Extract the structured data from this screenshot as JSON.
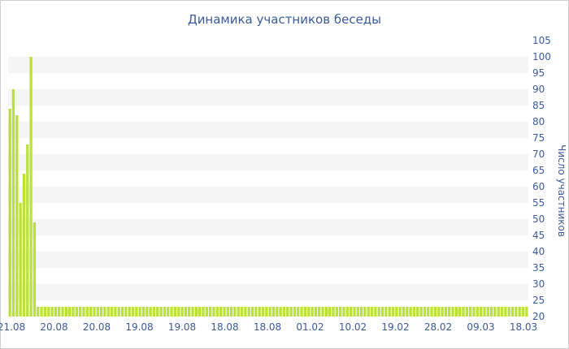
{
  "chart_data": {
    "type": "bar",
    "title": "Динамика участников беседы",
    "ylabel": "Число участников",
    "ylim": [
      20,
      105
    ],
    "y_ticks": [
      20,
      25,
      30,
      35,
      40,
      45,
      50,
      55,
      60,
      65,
      70,
      75,
      80,
      85,
      90,
      95,
      100,
      105
    ],
    "x_tick_labels": [
      "21.08",
      "20.08",
      "20.08",
      "19.08",
      "19.08",
      "18.08",
      "18.08",
      "01.02",
      "10.02",
      "19.02",
      "28.02",
      "09.03",
      "18.03"
    ],
    "values": [
      84,
      90,
      82,
      55,
      64,
      73,
      100,
      49,
      23,
      23,
      23,
      23,
      23,
      23,
      23,
      23,
      23,
      23,
      23,
      23,
      23,
      23,
      23,
      23,
      23,
      23,
      23,
      23,
      23,
      23,
      23,
      23,
      23,
      23,
      23,
      23,
      23,
      23,
      23,
      23,
      23,
      23,
      23,
      23,
      23,
      23,
      23,
      23,
      23,
      23,
      23,
      23,
      23,
      23,
      23,
      23,
      23,
      23,
      23,
      23,
      23,
      23,
      23,
      23,
      23,
      23,
      23,
      23,
      23,
      23,
      23,
      23,
      23,
      23,
      23,
      23,
      23,
      23,
      23,
      23,
      23,
      23,
      23,
      23,
      23,
      23,
      23,
      23,
      23,
      23,
      23,
      23,
      23,
      23,
      23,
      23,
      23,
      23,
      23,
      23,
      23,
      23,
      23,
      23,
      23,
      23,
      23,
      23,
      23,
      23,
      23,
      23,
      23,
      23,
      23,
      23,
      23,
      23,
      23,
      23,
      23,
      23,
      23,
      23,
      23,
      23,
      23,
      23,
      23,
      23,
      23,
      23,
      23,
      23,
      23,
      23,
      23,
      23,
      23,
      23,
      23,
      23,
      23,
      23,
      23,
      23,
      23,
      23
    ],
    "bar_color": "#bbe03a",
    "band_color": "#f5f5f5",
    "text_color": "#3b5a9a",
    "y_axis_side": "right",
    "grid": "alternating horizontal bands"
  }
}
